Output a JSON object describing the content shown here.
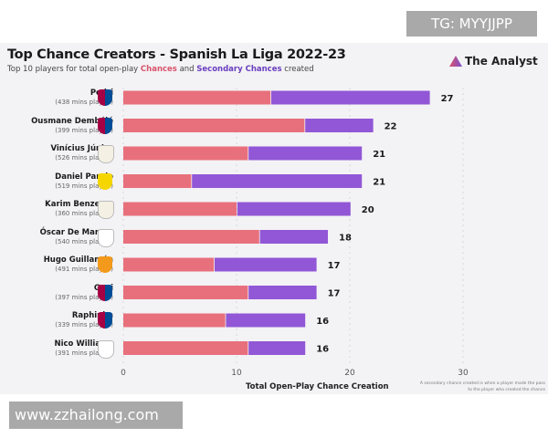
{
  "watermarks": {
    "top": "TG: MYYJJPP",
    "bottom": "www.zzhailong.com"
  },
  "header": {
    "title": "Top Chance Creators - Spanish La Liga 2022-23",
    "subtitle_pre": "Top 10 players for total open-play ",
    "subtitle_c1": "Chances",
    "subtitle_mid": " and ",
    "subtitle_c2": "Secondary Chances",
    "subtitle_post": " created",
    "logo": "The Analyst"
  },
  "chart_data": {
    "type": "bar",
    "orientation": "horizontal",
    "stacked": true,
    "title": "Top Chance Creators - Spanish La Liga 2022-23",
    "xlabel": "Total Open-Play Chance Creation",
    "xlim": [
      0,
      30
    ],
    "xticks": [
      0,
      10,
      20,
      30
    ],
    "grid": true,
    "categories": [
      "Pedri",
      "Ousmane Dembélé",
      "Vinícius Júnior",
      "Daniel Parejo",
      "Karim Benzema",
      "Óscar De Marcos",
      "Hugo Guillamón",
      "Gavi",
      "Raphinha",
      "Nico Williams"
    ],
    "minutes": [
      "(438 mins played)",
      "(399 mins played)",
      "(526 mins played)",
      "(519 mins played)",
      "(360 mins played)",
      "(540 mins played)",
      "(491 mins played)",
      "(397 mins played)",
      "(339 mins played)",
      "(391 mins played)"
    ],
    "clubs": [
      "barcelona",
      "barcelona",
      "real-madrid",
      "villarreal",
      "real-madrid",
      "athletic",
      "valencia",
      "barcelona",
      "barcelona",
      "athletic"
    ],
    "series": [
      {
        "name": "Chances",
        "color": "#e8707c",
        "values": [
          13,
          16,
          11,
          6,
          10,
          12,
          8,
          11,
          9,
          11
        ]
      },
      {
        "name": "Secondary Chances",
        "color": "#9157d6",
        "values": [
          14,
          6,
          10,
          15,
          10,
          6,
          9,
          6,
          7,
          5
        ]
      }
    ],
    "totals": [
      27,
      22,
      21,
      21,
      20,
      18,
      17,
      17,
      16,
      16
    ],
    "note": "A secondary chance created is when a player made the pass to the player who created the chance"
  }
}
